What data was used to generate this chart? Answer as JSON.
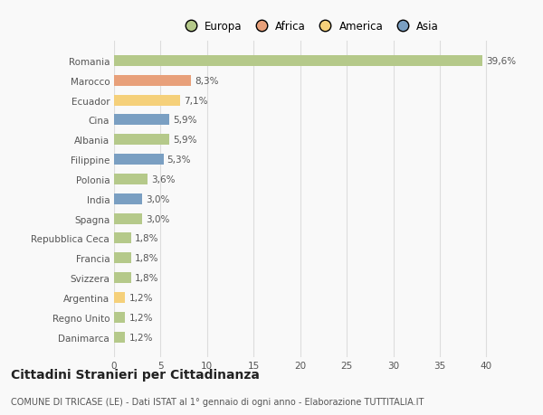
{
  "categories": [
    "Romania",
    "Marocco",
    "Ecuador",
    "Cina",
    "Albania",
    "Filippine",
    "Polonia",
    "India",
    "Spagna",
    "Repubblica Ceca",
    "Francia",
    "Svizzera",
    "Argentina",
    "Regno Unito",
    "Danimarca"
  ],
  "values": [
    39.6,
    8.3,
    7.1,
    5.9,
    5.9,
    5.3,
    3.6,
    3.0,
    3.0,
    1.8,
    1.8,
    1.8,
    1.2,
    1.2,
    1.2
  ],
  "labels": [
    "39,6%",
    "8,3%",
    "7,1%",
    "5,9%",
    "5,9%",
    "5,3%",
    "3,6%",
    "3,0%",
    "3,0%",
    "1,8%",
    "1,8%",
    "1,8%",
    "1,2%",
    "1,2%",
    "1,2%"
  ],
  "colors": [
    "#b5c98a",
    "#e8a07a",
    "#f5d07a",
    "#7a9fc2",
    "#b5c98a",
    "#7a9fc2",
    "#b5c98a",
    "#7a9fc2",
    "#b5c98a",
    "#b5c98a",
    "#b5c98a",
    "#b5c98a",
    "#f5d07a",
    "#b5c98a",
    "#b5c98a"
  ],
  "legend_labels": [
    "Europa",
    "Africa",
    "America",
    "Asia"
  ],
  "legend_colors": [
    "#b5c98a",
    "#e8a07a",
    "#f5d07a",
    "#7a9fc2"
  ],
  "xlim": [
    0,
    42
  ],
  "xticks": [
    0,
    5,
    10,
    15,
    20,
    25,
    30,
    35,
    40
  ],
  "title": "Cittadini Stranieri per Cittadinanza",
  "subtitle": "COMUNE DI TRICASE (LE) - Dati ISTAT al 1° gennaio di ogni anno - Elaborazione TUTTITALIA.IT",
  "background_color": "#f9f9f9",
  "bar_height": 0.55,
  "grid_color": "#dddddd",
  "label_fontsize": 7.5,
  "tick_fontsize": 7.5,
  "title_fontsize": 10,
  "subtitle_fontsize": 7,
  "legend_fontsize": 8.5
}
